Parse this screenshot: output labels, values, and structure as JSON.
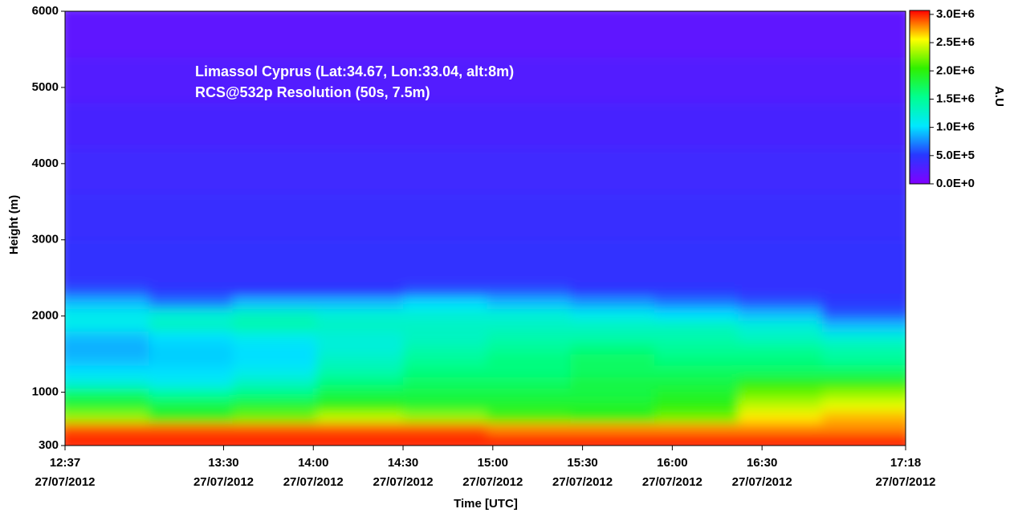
{
  "chart_data": {
    "type": "heatmap",
    "annotations": [
      "Limassol Cyprus (Lat:34.67, Lon:33.04, alt:8m)",
      "RCS@532p Resolution (50s, 7.5m)"
    ],
    "x_label": "Time [UTC]",
    "y_label": "Height (m)",
    "colorbar_label": "A.U",
    "xlim": [
      "2012-07-27T12:37",
      "2012-07-27T17:18"
    ],
    "xticks": [
      {
        "value": "2012-07-27T12:37",
        "label": [
          "12:37",
          "27/07/2012"
        ]
      },
      {
        "value": "2012-07-27T13:30",
        "label": [
          "13:30",
          "27/07/2012"
        ]
      },
      {
        "value": "2012-07-27T14:00",
        "label": [
          "14:00",
          "27/07/2012"
        ]
      },
      {
        "value": "2012-07-27T14:30",
        "label": [
          "14:30",
          "27/07/2012"
        ]
      },
      {
        "value": "2012-07-27T15:00",
        "label": [
          "15:00",
          "27/07/2012"
        ]
      },
      {
        "value": "2012-07-27T15:30",
        "label": [
          "15:30",
          "27/07/2012"
        ]
      },
      {
        "value": "2012-07-27T16:00",
        "label": [
          "16:00",
          "27/07/2012"
        ]
      },
      {
        "value": "2012-07-27T16:30",
        "label": [
          "16:30",
          "27/07/2012"
        ]
      },
      {
        "value": "2012-07-27T17:18",
        "label": [
          "17:18",
          "27/07/2012"
        ]
      }
    ],
    "ylim": [
      300,
      6000
    ],
    "yticks": [
      300,
      1000,
      2000,
      3000,
      4000,
      5000,
      6000
    ],
    "zlim": [
      0,
      3070000
    ],
    "colorbar_ticks": [
      {
        "value": 0,
        "label": "0.0E+0"
      },
      {
        "value": 500000,
        "label": "5.0E+5"
      },
      {
        "value": 1000000,
        "label": "1.0E+6"
      },
      {
        "value": 1500000,
        "label": "1.5E+6"
      },
      {
        "value": 2000000,
        "label": "2.0E+6"
      },
      {
        "value": 2500000,
        "label": "2.5E+6"
      },
      {
        "value": 3000000,
        "label": "3.0E+6"
      }
    ],
    "colormap": [
      "#8000ff",
      "#2838ff",
      "#00e8ff",
      "#00ff90",
      "#30f000",
      "#ffff00",
      "#ff0000"
    ],
    "x_edges": [
      "2012-07-27T12:37",
      "2012-07-27T13:05",
      "2012-07-27T13:33",
      "2012-07-27T14:01",
      "2012-07-27T14:30",
      "2012-07-27T14:58",
      "2012-07-27T15:26",
      "2012-07-27T15:54",
      "2012-07-27T16:22",
      "2012-07-27T16:50",
      "2012-07-27T17:18"
    ],
    "y_edges": [
      300,
      450,
      600,
      750,
      900,
      1050,
      1200,
      1350,
      1500,
      1650,
      1800,
      1950,
      2100,
      2250,
      2400,
      3000,
      3600,
      4200,
      4800,
      5400,
      6000
    ],
    "z": [
      [
        3000000,
        3000000,
        3000000,
        3000000,
        3000000,
        3000000,
        3000000,
        3000000,
        3000000,
        3000000
      ],
      [
        2900000,
        2900000,
        2900000,
        2900000,
        2900000,
        2800000,
        2800000,
        2800000,
        2800000,
        2800000
      ],
      [
        2300000,
        2000000,
        2200000,
        2400000,
        2300000,
        2100000,
        2000000,
        2200000,
        2600000,
        2700000
      ],
      [
        1900000,
        1800000,
        1900000,
        2000000,
        1900000,
        1900000,
        1900000,
        2000000,
        2400000,
        2500000
      ],
      [
        1700000,
        1500000,
        1600000,
        1800000,
        1800000,
        1800000,
        1800000,
        1900000,
        2200000,
        2300000
      ],
      [
        1200000,
        1100000,
        1300000,
        1600000,
        1700000,
        1700000,
        1800000,
        1800000,
        2000000,
        2000000
      ],
      [
        1000000,
        1000000,
        1100000,
        1400000,
        1600000,
        1600000,
        1700000,
        1700000,
        1700000,
        1700000
      ],
      [
        900000,
        950000,
        1000000,
        1300000,
        1500000,
        1600000,
        1700000,
        1600000,
        1600000,
        1500000
      ],
      [
        850000,
        950000,
        1000000,
        1200000,
        1400000,
        1500000,
        1600000,
        1500000,
        1500000,
        1400000
      ],
      [
        900000,
        1000000,
        1100000,
        1200000,
        1300000,
        1400000,
        1400000,
        1400000,
        1300000,
        1200000
      ],
      [
        1100000,
        1300000,
        1400000,
        1300000,
        1300000,
        1300000,
        1300000,
        1300000,
        1200000,
        900000
      ],
      [
        1100000,
        1200000,
        1300000,
        1200000,
        1200000,
        1200000,
        1100000,
        1000000,
        900000,
        600000
      ],
      [
        900000,
        700000,
        900000,
        900000,
        1000000,
        900000,
        800000,
        700000,
        600000,
        500000
      ],
      [
        600000,
        500000,
        500000,
        500000,
        600000,
        600000,
        500000,
        500000,
        450000,
        450000
      ],
      [
        450000,
        450000,
        450000,
        450000,
        450000,
        450000,
        450000,
        450000,
        450000,
        450000
      ],
      [
        420000,
        420000,
        420000,
        420000,
        420000,
        420000,
        420000,
        420000,
        420000,
        420000
      ],
      [
        380000,
        380000,
        380000,
        380000,
        380000,
        380000,
        380000,
        380000,
        380000,
        380000
      ],
      [
        330000,
        330000,
        330000,
        330000,
        330000,
        330000,
        330000,
        330000,
        330000,
        330000
      ],
      [
        270000,
        270000,
        270000,
        270000,
        270000,
        270000,
        270000,
        270000,
        270000,
        270000
      ],
      [
        200000,
        200000,
        200000,
        200000,
        200000,
        200000,
        200000,
        200000,
        200000,
        200000
      ]
    ]
  }
}
